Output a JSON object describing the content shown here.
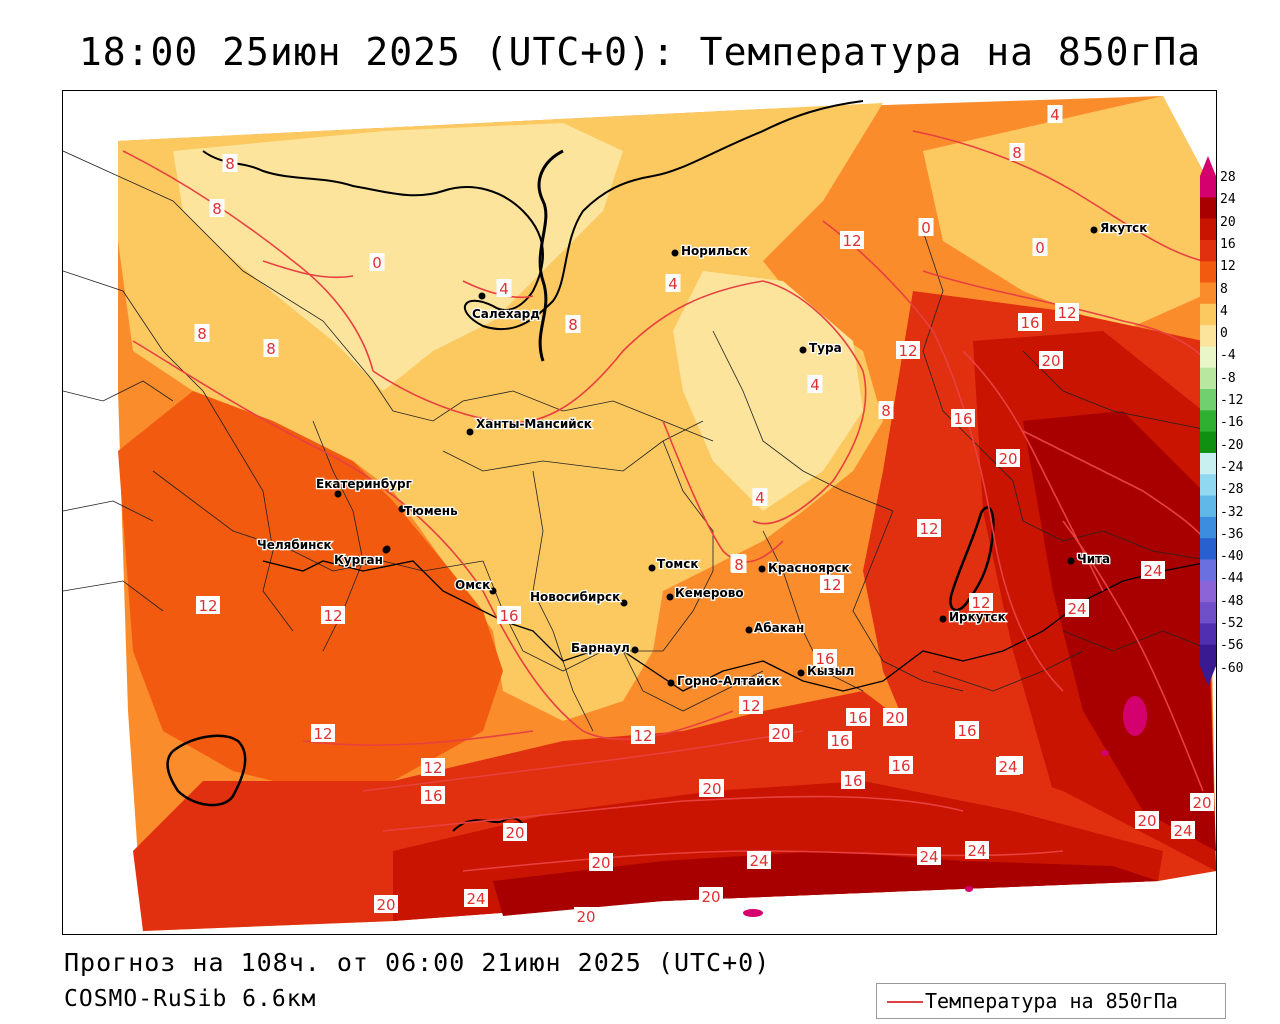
{
  "title": "18:00 25июн 2025 (UTC+0): Температура на 850гПа",
  "forecast_line": "Прогноз на 108ч. от 06:00 21июн 2025 (UTC+0)",
  "model_line": "COSMO-RuSib 6.6км",
  "legend_label": "Температура на 850гПа",
  "legend_line_color": "#e04040",
  "colorbar": {
    "labels": [
      "28",
      "24",
      "20",
      "16",
      "12",
      "8",
      "4",
      "0",
      "-4",
      "-8",
      "-12",
      "-16",
      "-20",
      "-24",
      "-28",
      "-32",
      "-36",
      "-40",
      "-44",
      "-48",
      "-52",
      "-56",
      "-60"
    ],
    "colors": [
      "#d4006e",
      "#a80000",
      "#c81400",
      "#e03010",
      "#f25a10",
      "#fb8c2c",
      "#fcc860",
      "#fce49c",
      "#e8f6c8",
      "#b8e8a0",
      "#70d070",
      "#30b030",
      "#109010",
      "#c8f0f0",
      "#90d8f0",
      "#60b8e8",
      "#3c8ce0",
      "#2860d0",
      "#6a70e0",
      "#8c64d8",
      "#7050c8",
      "#5030b0",
      "#3a1a90"
    ]
  },
  "cities": [
    {
      "name": "Норильск"
    },
    {
      "name": "Якутск"
    },
    {
      "name": "Салехард"
    },
    {
      "name": "Тура"
    },
    {
      "name": "Ханты-Мансийск"
    },
    {
      "name": "Екатеринбург"
    },
    {
      "name": "Тюмень"
    },
    {
      "name": "Челябинск"
    },
    {
      "name": "Курган"
    },
    {
      "name": "Омск"
    },
    {
      "name": "Новосибирск"
    },
    {
      "name": "Томск"
    },
    {
      "name": "Красноярск"
    },
    {
      "name": "Кемерово"
    },
    {
      "name": "Абакан"
    },
    {
      "name": "Барнаул"
    },
    {
      "name": "Кызыл"
    },
    {
      "name": "Горно-Алтайск"
    },
    {
      "name": "Иркутск"
    },
    {
      "name": "Чита"
    }
  ],
  "contour_labels": [
    "4",
    "8",
    "8",
    "8",
    "0",
    "4",
    "0",
    "0",
    "4",
    "12",
    "8",
    "8",
    "8",
    "16",
    "12",
    "12",
    "20",
    "4",
    "8",
    "16",
    "20",
    "8",
    "4",
    "12",
    "12",
    "24",
    "12",
    "12",
    "16",
    "8",
    "12",
    "24",
    "16",
    "12",
    "16",
    "12",
    "20",
    "16",
    "16",
    "20",
    "12",
    "20",
    "16",
    "20",
    "16",
    "24",
    "12",
    "16",
    "20",
    "20",
    "24",
    "20",
    "24",
    "20",
    "24",
    "20",
    "24",
    "20",
    "20",
    "24",
    "20"
  ]
}
